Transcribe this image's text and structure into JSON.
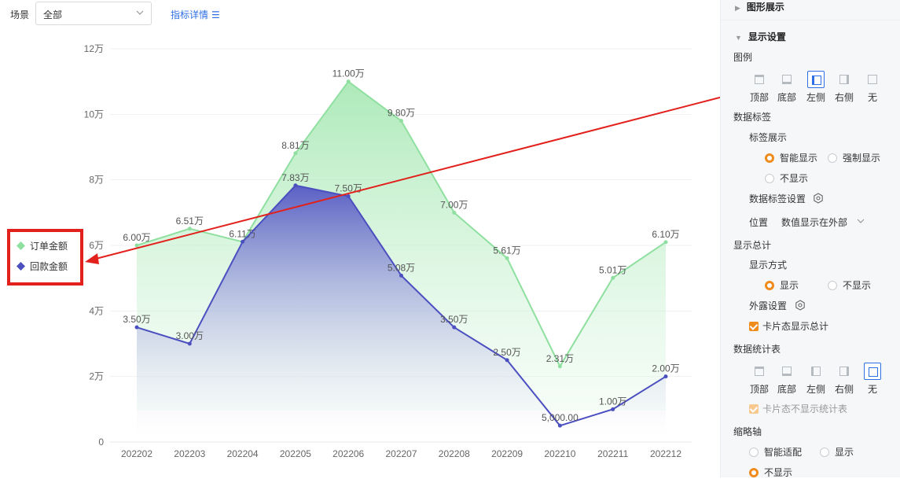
{
  "toolbar": {
    "scene_label": "场景",
    "scene_value": "全部",
    "detail_link": "指标详情"
  },
  "chart_data": {
    "type": "area",
    "categories": [
      "202202",
      "202203",
      "202204",
      "202205",
      "202206",
      "202207",
      "202208",
      "202209",
      "202210",
      "202211",
      "202212"
    ],
    "ylim": [
      0,
      120000
    ],
    "y_ticks": [
      "0",
      "2万",
      "4万",
      "6万",
      "8万",
      "10万",
      "12万"
    ],
    "legend_position": "left",
    "series": [
      {
        "name": "订单金额",
        "color": "#8fe0a0",
        "values": [
          60000,
          65100,
          61100,
          88100,
          110000,
          98000,
          70000,
          56100,
          23100,
          50100,
          61000
        ],
        "labels": [
          "6.00万",
          "6.51万",
          "6.11万",
          "8.81万",
          "11.00万",
          "9.80万",
          "7.00万",
          "5.61万",
          "2.31万",
          "5.01万",
          "6.10万"
        ]
      },
      {
        "name": "回款金额",
        "color": "#4b4fbf",
        "values": [
          35000,
          30000,
          61100,
          78300,
          75000,
          50800,
          35000,
          25000,
          5000,
          10000,
          20000
        ],
        "labels": [
          "3.50万",
          "3.00万",
          "",
          "7.83万",
          "7.50万",
          "5.08万",
          "3.50万",
          "2.50万",
          "5,000.00",
          "1.00万",
          "2.00万"
        ]
      }
    ]
  },
  "panel": {
    "graph_display": "图形展示",
    "display_settings": "显示设置",
    "legend_title": "图例",
    "legend_options": [
      "顶部",
      "底部",
      "左侧",
      "右侧",
      "无"
    ],
    "legend_selected": 2,
    "data_label_title": "数据标签",
    "label_display": "标签展示",
    "label_display_options": [
      "智能显示",
      "强制显示",
      "不显示"
    ],
    "data_label_settings": "数据标签设置",
    "position_label": "位置",
    "position_value": "数值显示在外部",
    "show_total_title": "显示总计",
    "display_mode": "显示方式",
    "display_mode_options": [
      "显示",
      "不显示"
    ],
    "exposure_settings": "外露设置",
    "card_show_total": "卡片态显示总计",
    "stats_table_title": "数据统计表",
    "stats_options": [
      "顶部",
      "底部",
      "左侧",
      "右侧",
      "无"
    ],
    "stats_selected": 4,
    "card_hide_stats": "卡片态不显示统计表",
    "thumbnail_axis": "缩略轴",
    "thumbnail_options": [
      "智能适配",
      "显示",
      "不显示"
    ]
  },
  "colors": {
    "accent": "#2f6fe4",
    "radio": "#f08c1e",
    "highlight": "#e2211c"
  }
}
